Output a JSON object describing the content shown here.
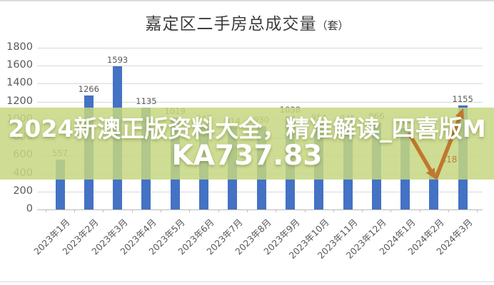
{
  "title": {
    "text": "嘉定区二手房总成交量",
    "unit": "（套）"
  },
  "watermark": {
    "line1": "2024新澳正版资料大全，精准解读_四喜版M",
    "line2": "KA737.83",
    "band_color": "rgba(197,215,128,0.85)",
    "text_color": "#ffffff"
  },
  "chart_data": {
    "type": "bar",
    "title": "嘉定区二手房总成交量（套）",
    "categories": [
      "2023年1月",
      "2023年2月",
      "2023年3月",
      "2023年4月",
      "2023年5月",
      "2023年6月",
      "2023年7月",
      "2023年8月",
      "2023年9月",
      "2023年10月",
      "2023年11月",
      "2023年12月",
      "2024年1月",
      "2024年2月",
      "2024年3月"
    ],
    "values": [
      557,
      1266,
      1593,
      1135,
      1019,
      947,
      914,
      930,
      1038,
      954,
      945,
      966,
      904,
      418,
      1155
    ],
    "bar_color": "#4472c4",
    "value_label_color": "#595959",
    "axis_label_color": "#595959",
    "grid_color": "#d9d9d9",
    "ylim": [
      0,
      1800
    ],
    "ytick_step": 200,
    "grid": true,
    "legend_position": "none",
    "highlight": {
      "index": 13,
      "value": 418,
      "label_color": "#bd7d40",
      "arrow_color": "#c0772e",
      "meaning": "sharp-drop-then-rebound-arrow"
    }
  }
}
